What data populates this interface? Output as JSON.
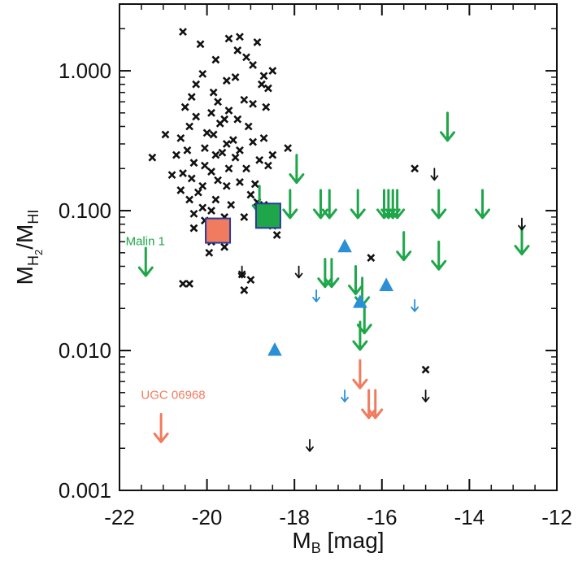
{
  "chart_data": {
    "type": "scatter",
    "xlabel": {
      "main": "M",
      "sub": "B",
      "rest": " [mag]"
    },
    "ylabel": {
      "main": "M",
      "sub": "H",
      "subsub": "2",
      "slash": "/M",
      "sub2": "HI"
    },
    "xlim": [
      -22,
      -12
    ],
    "ylim": [
      0.001,
      3.0
    ],
    "yscale": "log",
    "x_ticks": [
      -22,
      -20,
      -18,
      -16,
      -14,
      -12
    ],
    "x_tick_labels": [
      "-22",
      "-20",
      "-18",
      "-16",
      "-14",
      "-12"
    ],
    "y_ticks": [
      0.001,
      0.01,
      0.1,
      1.0
    ],
    "y_tick_labels": [
      "0.001",
      "0.010",
      "0.100",
      "1.000"
    ],
    "colors": {
      "crosses": "#111111",
      "green": "#1fa64a",
      "blue": "#2b8fd6",
      "orange": "#f07b5e",
      "square_edge": "#2a3a9a"
    },
    "annotations": [
      {
        "text": "Malin 1",
        "x": -21.45,
        "y": 0.055,
        "color": "#1fa64a"
      },
      {
        "text": "UGC 06968",
        "x": -21.1,
        "y": 0.0044,
        "color": "#f07b5e"
      }
    ],
    "series": [
      {
        "marker": "cross",
        "color": "#111111",
        "points": [
          [
            -20.55,
            1.9
          ],
          [
            -19.5,
            1.7
          ],
          [
            -19.25,
            1.75
          ],
          [
            -20.15,
            1.55
          ],
          [
            -19.3,
            1.4
          ],
          [
            -18.85,
            1.6
          ],
          [
            -19.8,
            1.2
          ],
          [
            -19.1,
            1.25
          ],
          [
            -18.95,
            1.1
          ],
          [
            -18.5,
            1.0
          ],
          [
            -18.7,
            0.92
          ],
          [
            -20.1,
            0.95
          ],
          [
            -19.55,
            0.85
          ],
          [
            -19.35,
            0.9
          ],
          [
            -18.75,
            0.8
          ],
          [
            -20.25,
            0.8
          ],
          [
            -18.6,
            0.75
          ],
          [
            -19.85,
            0.7
          ],
          [
            -20.35,
            0.65
          ],
          [
            -19.75,
            0.6
          ],
          [
            -19.15,
            0.62
          ],
          [
            -18.95,
            0.58
          ],
          [
            -20.5,
            0.55
          ],
          [
            -19.9,
            0.5
          ],
          [
            -19.5,
            0.52
          ],
          [
            -18.65,
            0.55
          ],
          [
            -20.25,
            0.47
          ],
          [
            -19.6,
            0.45
          ],
          [
            -19.3,
            0.45
          ],
          [
            -19.7,
            0.42
          ],
          [
            -19.05,
            0.4
          ],
          [
            -20.4,
            0.4
          ],
          [
            -20.0,
            0.36
          ],
          [
            -19.85,
            0.35
          ],
          [
            -20.6,
            0.33
          ],
          [
            -19.4,
            0.32
          ],
          [
            -18.7,
            0.33
          ],
          [
            -18.95,
            0.31
          ],
          [
            -19.55,
            0.3
          ],
          [
            -20.05,
            0.28
          ],
          [
            -19.25,
            0.27
          ],
          [
            -19.65,
            0.26
          ],
          [
            -18.15,
            0.28
          ],
          [
            -20.95,
            0.35
          ],
          [
            -20.45,
            0.27
          ],
          [
            -20.7,
            0.25
          ],
          [
            -19.8,
            0.25
          ],
          [
            -18.5,
            0.25
          ],
          [
            -19.35,
            0.24
          ],
          [
            -20.3,
            0.22
          ],
          [
            -18.8,
            0.23
          ],
          [
            -18.6,
            0.21
          ],
          [
            -20.05,
            0.21
          ],
          [
            -19.5,
            0.2
          ],
          [
            -19.9,
            0.19
          ],
          [
            -19.1,
            0.2
          ],
          [
            -20.55,
            0.185
          ],
          [
            -21.25,
            0.24
          ],
          [
            -20.8,
            0.18
          ],
          [
            -20.35,
            0.17
          ],
          [
            -19.75,
            0.165
          ],
          [
            -19.25,
            0.16
          ],
          [
            -20.1,
            0.15
          ],
          [
            -19.55,
            0.15
          ],
          [
            -18.9,
            0.155
          ],
          [
            -20.6,
            0.14
          ],
          [
            -20.2,
            0.135
          ],
          [
            -19.0,
            0.13
          ],
          [
            -19.8,
            0.12
          ],
          [
            -20.4,
            0.12
          ],
          [
            -18.85,
            0.115
          ],
          [
            -19.45,
            0.11
          ],
          [
            -18.7,
            0.11
          ],
          [
            -20.1,
            0.105
          ],
          [
            -19.9,
            0.1
          ],
          [
            -18.45,
            0.1
          ],
          [
            -20.3,
            0.095
          ],
          [
            -19.6,
            0.09
          ],
          [
            -19.15,
            0.09
          ],
          [
            -20.05,
            0.085
          ],
          [
            -19.8,
            0.08
          ],
          [
            -18.5,
            0.078
          ],
          [
            -20.3,
            0.075
          ],
          [
            -19.9,
            0.06
          ],
          [
            -19.6,
            0.055
          ],
          [
            -19.95,
            0.05
          ],
          [
            -18.4,
            0.067
          ],
          [
            -20.55,
            0.03
          ],
          [
            -20.4,
            0.03
          ],
          [
            -19.2,
            0.035
          ],
          [
            -19.0,
            0.032
          ],
          [
            -19.15,
            0.027
          ],
          [
            -15.25,
            0.2
          ],
          [
            -16.25,
            0.046
          ],
          [
            -15.0,
            0.0073
          ]
        ]
      },
      {
        "marker": "arrow-large",
        "color": "#1fa64a",
        "points": [
          [
            -14.5,
            0.5
          ],
          [
            -17.95,
            0.25
          ],
          [
            -18.8,
            0.15
          ],
          [
            -18.1,
            0.14
          ],
          [
            -17.4,
            0.14
          ],
          [
            -17.2,
            0.14
          ],
          [
            -16.55,
            0.14
          ],
          [
            -15.95,
            0.14
          ],
          [
            -15.85,
            0.14
          ],
          [
            -15.75,
            0.14
          ],
          [
            -15.65,
            0.14
          ],
          [
            -14.7,
            0.14
          ],
          [
            -13.7,
            0.14
          ],
          [
            -15.5,
            0.07
          ],
          [
            -14.7,
            0.06
          ],
          [
            -12.8,
            0.077
          ],
          [
            -17.3,
            0.045
          ],
          [
            -17.15,
            0.045
          ],
          [
            -16.6,
            0.04
          ],
          [
            -16.45,
            0.033
          ],
          [
            -16.4,
            0.021
          ],
          [
            -16.5,
            0.016
          ],
          [
            -21.4,
            0.054
          ]
        ]
      },
      {
        "marker": "arrow-small",
        "color": "#111111",
        "points": [
          [
            -14.8,
            0.2
          ],
          [
            -12.8,
            0.088
          ],
          [
            -19.2,
            0.04
          ],
          [
            -17.9,
            0.04
          ],
          [
            -15.0,
            0.0052
          ],
          [
            -17.65,
            0.0023
          ]
        ]
      },
      {
        "marker": "arrow-small",
        "color": "#2b8fd6",
        "points": [
          [
            -17.5,
            0.027
          ],
          [
            -15.25,
            0.023
          ],
          [
            -16.85,
            0.0052
          ]
        ]
      },
      {
        "marker": "arrow-large",
        "color": "#f07b5e",
        "points": [
          [
            -16.5,
            0.0085
          ],
          [
            -16.3,
            0.0052
          ],
          [
            -16.15,
            0.0052
          ],
          [
            -21.05,
            0.0035
          ]
        ]
      },
      {
        "marker": "triangle",
        "color": "#2b8fd6",
        "points": [
          [
            -16.85,
            0.055
          ],
          [
            -15.9,
            0.029
          ],
          [
            -16.5,
            0.022
          ],
          [
            -18.45,
            0.01
          ]
        ]
      },
      {
        "marker": "square",
        "color": "#1fa64a",
        "points": [
          [
            -18.6,
            0.092
          ]
        ]
      },
      {
        "marker": "square",
        "color": "#f07b5e",
        "points": [
          [
            -19.75,
            0.072
          ]
        ]
      }
    ]
  }
}
